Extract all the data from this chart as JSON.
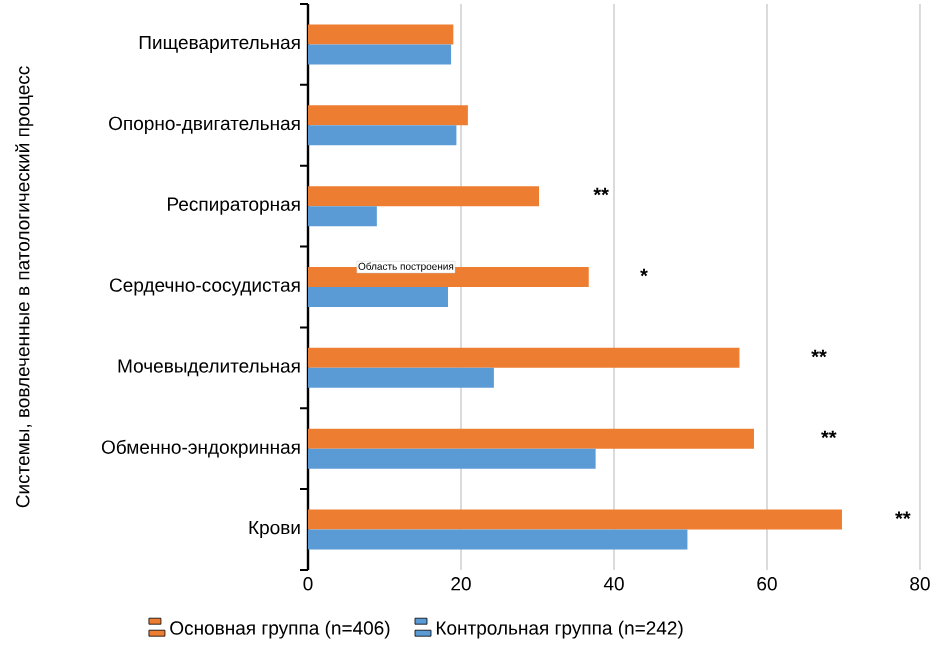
{
  "chart_data": {
    "type": "bar",
    "orientation": "horizontal",
    "ylabel": "Системы, вовлеченные в патологический процесс",
    "categories": [
      "Пищеварительная",
      "Опорно-двигательная",
      "Респираторная",
      "Сердечно-сосудистая",
      "Мочевыделительная",
      "Обменно-эндокринная",
      "Крови"
    ],
    "series": [
      {
        "name": "Основная группа (n=406)",
        "color": "#ed7d31",
        "values": [
          19.0,
          20.9,
          30.2,
          36.7,
          56.4,
          58.3,
          69.8
        ]
      },
      {
        "name": "Контрольная группа (n=242)",
        "color": "#5b9bd5",
        "values": [
          18.7,
          19.4,
          9.0,
          18.3,
          24.3,
          37.6,
          49.6
        ]
      }
    ],
    "xlim": [
      0,
      80
    ],
    "xticks": [
      0,
      20,
      40,
      60,
      80
    ],
    "grid": "x",
    "legend": "bottom",
    "annotations": [
      "**",
      "*",
      "**",
      "**",
      "**",
      "Область построения"
    ]
  }
}
